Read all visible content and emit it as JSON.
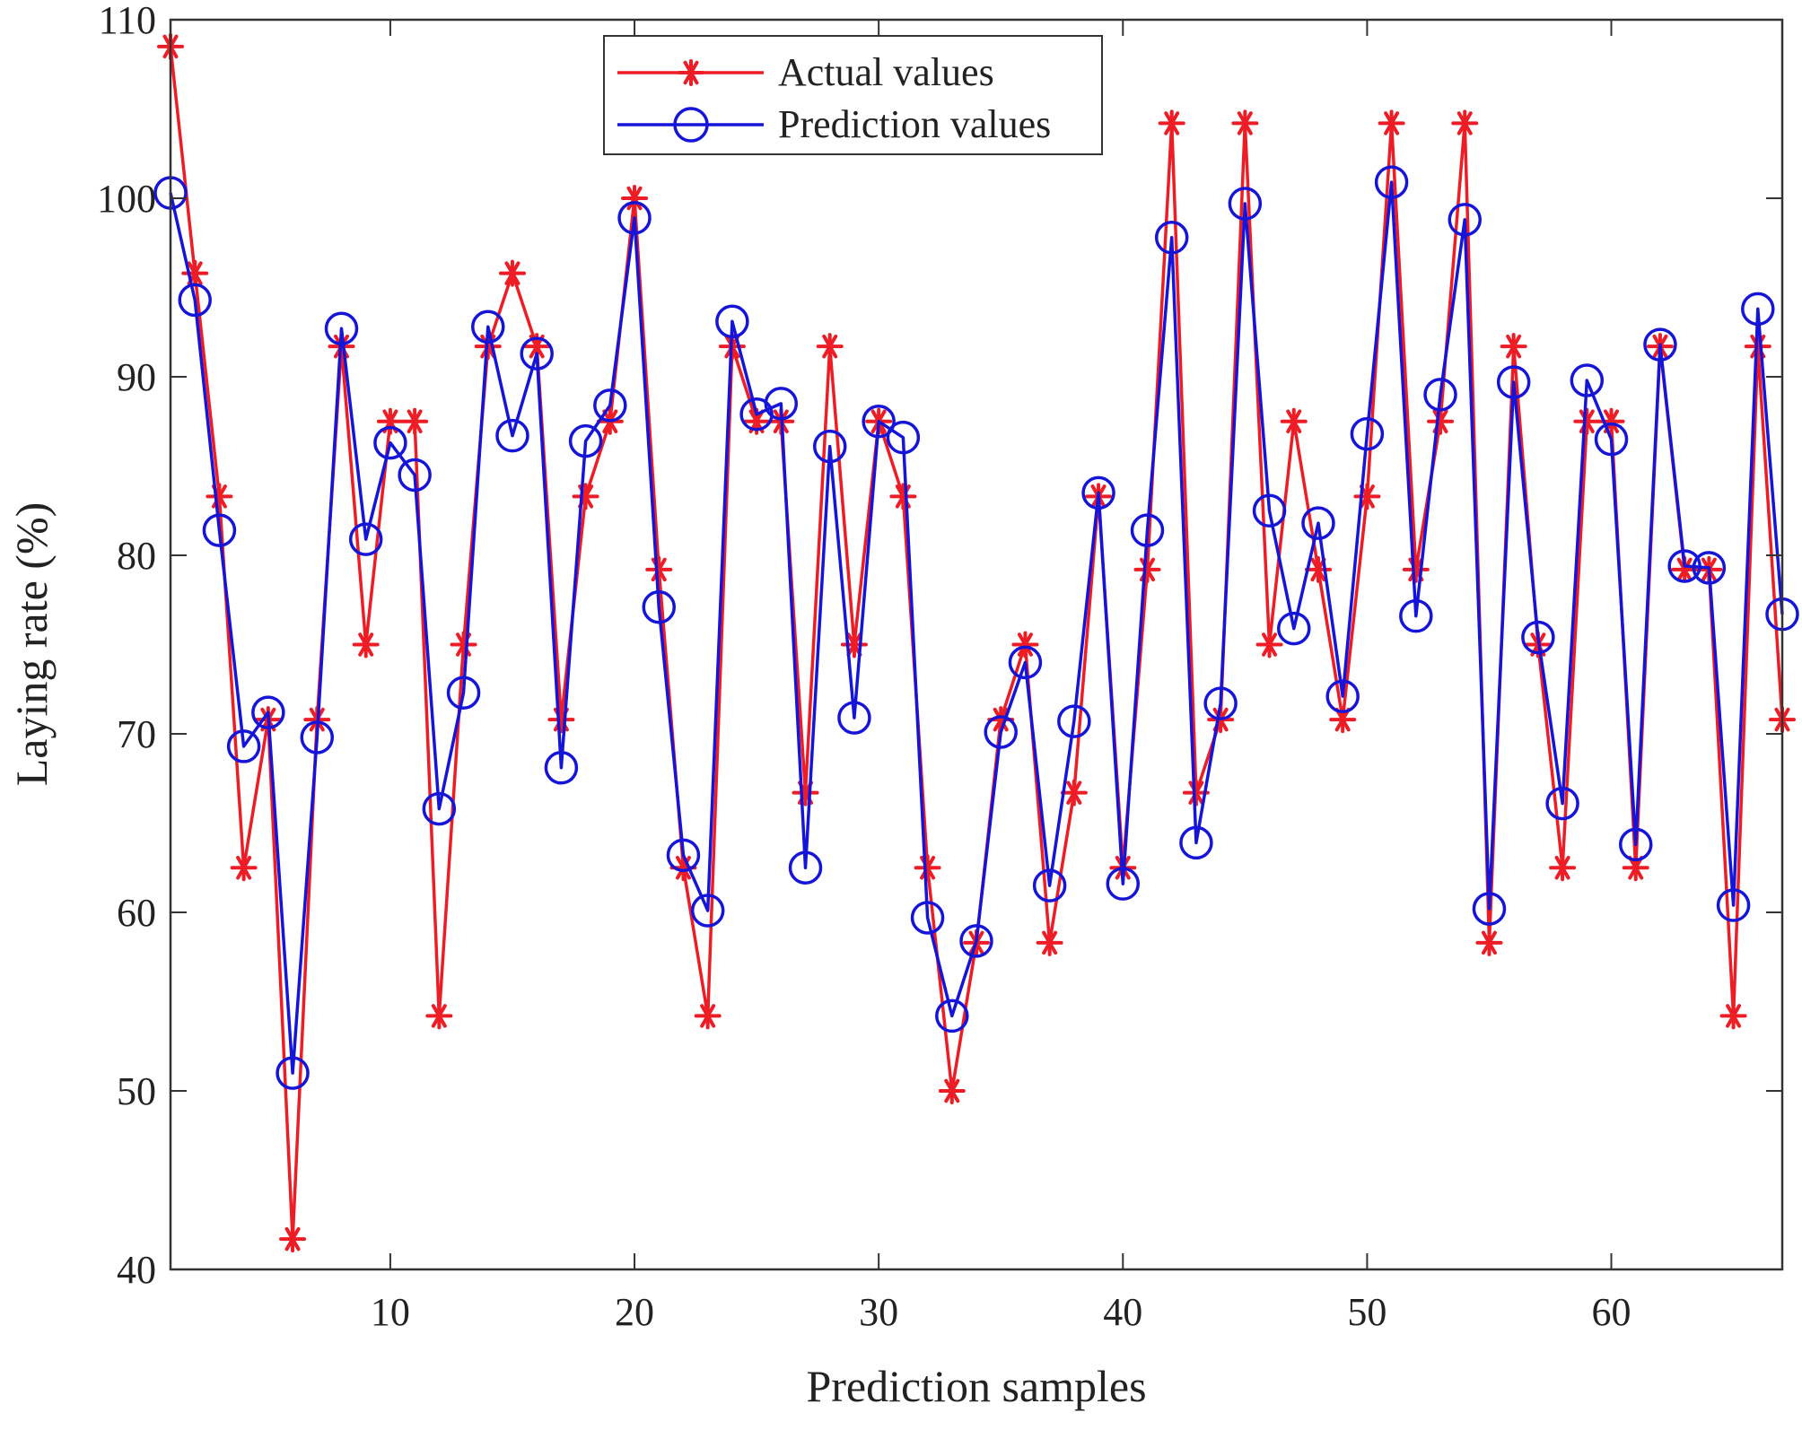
{
  "chart_data": {
    "type": "line",
    "title": "",
    "xlabel": "Prediction samples",
    "ylabel": "Laying rate (%)",
    "xlim": [
      1,
      67
    ],
    "ylim": [
      40,
      110
    ],
    "x_ticks": [
      10,
      20,
      30,
      40,
      50,
      60
    ],
    "y_ticks": [
      40,
      50,
      60,
      70,
      80,
      90,
      100,
      110
    ],
    "grid": false,
    "legend_position": "top-center",
    "x": [
      1,
      2,
      3,
      4,
      5,
      6,
      7,
      8,
      9,
      10,
      11,
      12,
      13,
      14,
      15,
      16,
      17,
      18,
      19,
      20,
      21,
      22,
      23,
      24,
      25,
      26,
      27,
      28,
      29,
      30,
      31,
      32,
      33,
      34,
      35,
      36,
      37,
      38,
      39,
      40,
      41,
      42,
      43,
      44,
      45,
      46,
      47,
      48,
      49,
      50,
      51,
      52,
      53,
      54,
      55,
      56,
      57,
      58,
      59,
      60,
      61,
      62,
      63,
      64,
      65,
      66,
      67
    ],
    "series": [
      {
        "name": "Actual values",
        "color": "#ee1c25",
        "marker": "asterisk",
        "values": [
          108.5,
          95.8,
          83.3,
          62.5,
          70.8,
          41.7,
          70.8,
          91.7,
          75.0,
          87.5,
          87.5,
          54.2,
          75.0,
          91.7,
          95.8,
          91.7,
          70.8,
          83.3,
          87.5,
          100.0,
          79.2,
          62.5,
          54.2,
          91.7,
          87.5,
          87.5,
          66.7,
          91.7,
          75.0,
          87.5,
          83.3,
          62.5,
          50.0,
          58.3,
          70.8,
          75.0,
          58.3,
          66.7,
          83.3,
          62.5,
          79.2,
          104.2,
          66.7,
          70.8,
          104.2,
          75.0,
          87.5,
          79.2,
          70.8,
          83.3,
          104.2,
          79.2,
          87.5,
          104.2,
          58.3,
          91.7,
          75.0,
          62.5,
          87.5,
          87.5,
          62.5,
          91.7,
          79.2,
          79.2,
          54.2,
          91.7,
          70.8
        ]
      },
      {
        "name": "Prediction values",
        "color": "#1515d9",
        "marker": "circle",
        "values": [
          100.3,
          94.3,
          81.4,
          69.3,
          71.2,
          51.0,
          69.8,
          92.7,
          80.9,
          86.3,
          84.5,
          65.8,
          72.3,
          92.8,
          86.7,
          91.3,
          68.1,
          86.4,
          88.4,
          98.9,
          77.1,
          63.2,
          60.1,
          93.1,
          87.9,
          88.5,
          62.5,
          86.1,
          70.9,
          87.5,
          86.6,
          59.7,
          54.2,
          58.4,
          70.1,
          74.0,
          61.5,
          70.7,
          83.5,
          61.6,
          81.4,
          97.8,
          63.9,
          71.7,
          99.7,
          82.5,
          75.9,
          81.8,
          72.1,
          86.8,
          100.9,
          76.6,
          89.0,
          98.8,
          60.2,
          89.7,
          75.4,
          66.1,
          89.8,
          86.5,
          63.8,
          91.8,
          79.4,
          79.3,
          60.4,
          93.8,
          76.7
        ]
      }
    ]
  }
}
